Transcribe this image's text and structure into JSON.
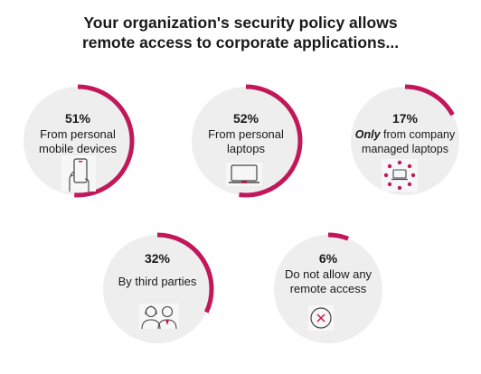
{
  "title_line1": "Your organization's security policy allows",
  "title_line2": "remote access to corporate applications...",
  "accent_color": "#c2185b",
  "circle_color": "#eeeeee",
  "chart_data": {
    "type": "radial-progress",
    "items": [
      {
        "value": 51,
        "value_label": "51%",
        "label_line1": "From personal",
        "label_line2": "mobile devices",
        "icon": "smartphone-hand-icon"
      },
      {
        "value": 52,
        "value_label": "52%",
        "label_line1": "From personal",
        "label_line2": "laptops",
        "icon": "laptop-icon"
      },
      {
        "value": 17,
        "value_label": "17%",
        "label_emphasis": "Only",
        "label_line1": " from company",
        "label_line2": "managed laptops",
        "icon": "managed-laptop-icon"
      },
      {
        "value": 32,
        "value_label": "32%",
        "label_line1": "By third parties",
        "label_line2": "",
        "icon": "people-icon"
      },
      {
        "value": 6,
        "value_label": "6%",
        "label_line1": "Do not allow any",
        "label_line2": "remote access",
        "icon": "no-access-icon"
      }
    ]
  }
}
